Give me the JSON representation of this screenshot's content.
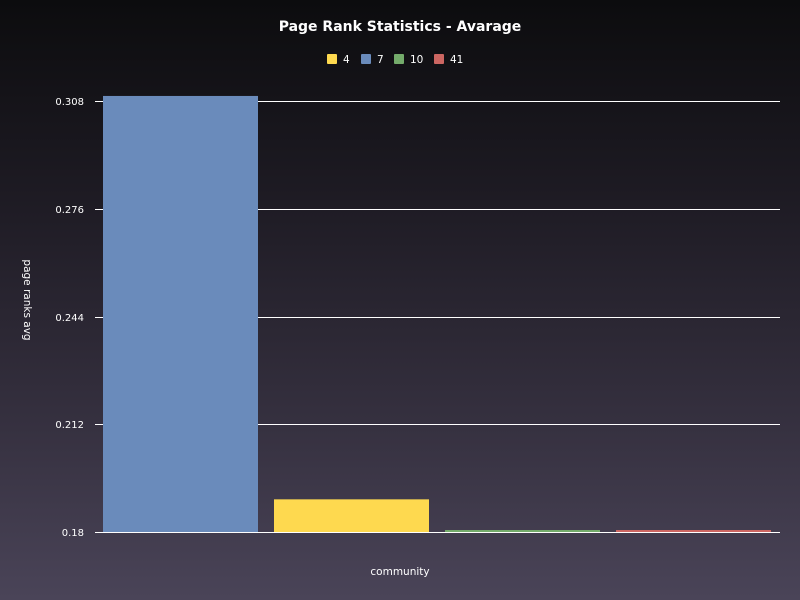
{
  "chart_data": {
    "type": "bar",
    "title": "Page Rank Statistics - Avarage",
    "xlabel": "community",
    "ylabel": "page ranks avg",
    "series": [
      {
        "name": "7",
        "value": 0.3095,
        "color": "#6a8bbb"
      },
      {
        "name": "4",
        "value": 0.1897,
        "color": "#fed94f"
      },
      {
        "name": "10",
        "value": 0.1803,
        "color": "#74ab6b"
      },
      {
        "name": "41",
        "value": 0.1803,
        "color": "#cc6662"
      }
    ],
    "legend_order": [
      "4",
      "7",
      "10",
      "41"
    ],
    "legend": [
      {
        "name": "4",
        "color": "#fed94f"
      },
      {
        "name": "7",
        "color": "#6a8bbb"
      },
      {
        "name": "10",
        "color": "#74ab6b"
      },
      {
        "name": "41",
        "color": "#cc6662"
      }
    ],
    "yticks": [
      "0.18",
      "0.212",
      "0.244",
      "0.276",
      "0.308"
    ],
    "ylim": [
      0.18,
      0.308
    ],
    "grid": true,
    "legend_placement": "top-center"
  }
}
